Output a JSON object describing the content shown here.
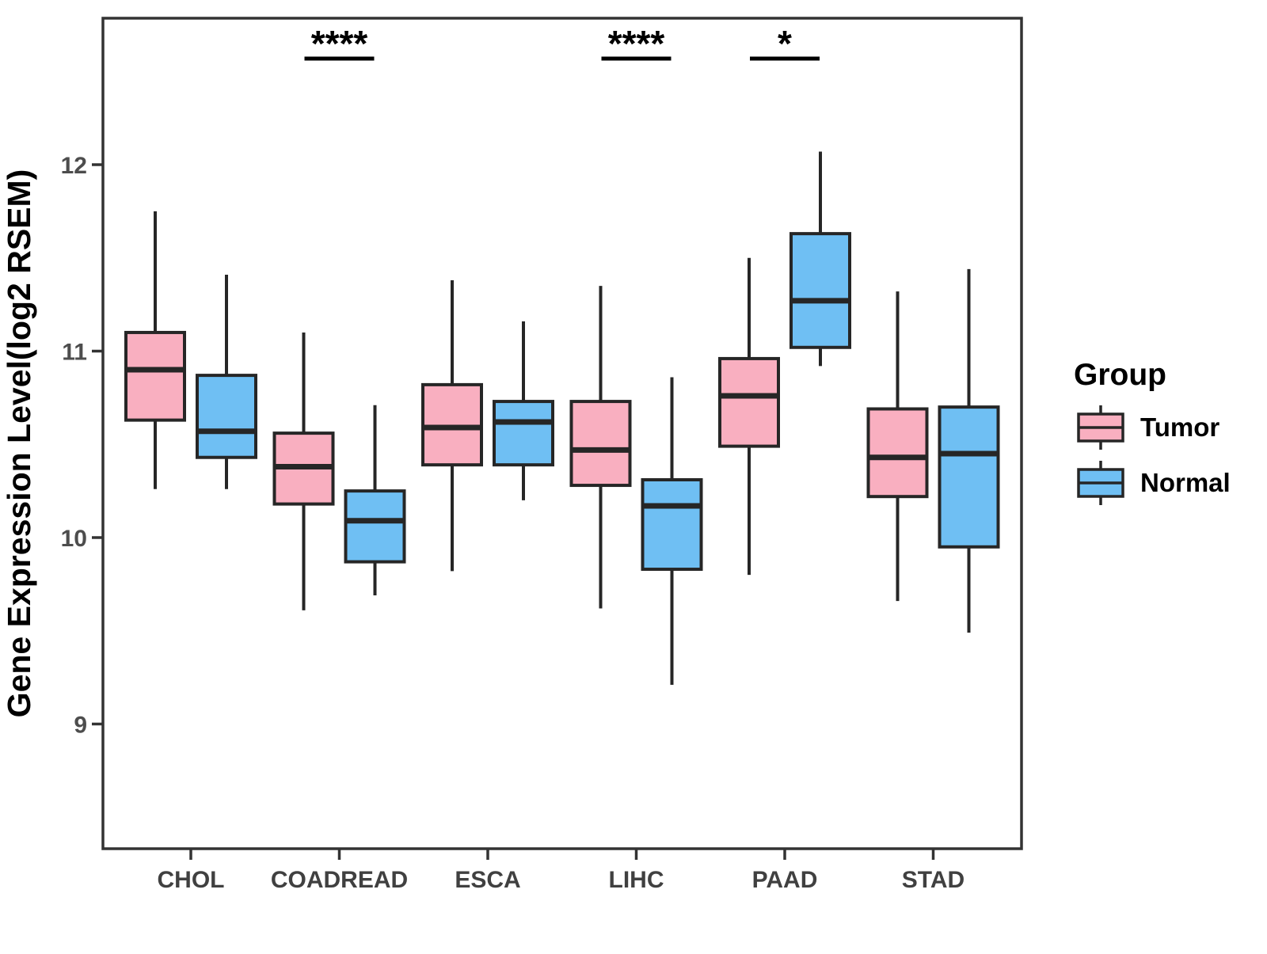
{
  "figure": {
    "background": "#ffffff"
  },
  "y_axis": {
    "title": "Gene Expression Level(log2 RSEM)",
    "ticks": [
      "9",
      "10",
      "11",
      "12"
    ],
    "tick_values": [
      9,
      10,
      11,
      12
    ]
  },
  "x_axis": {
    "categories": [
      "CHOL",
      "COADREAD",
      "ESCA",
      "LIHC",
      "PAAD",
      "STAD"
    ]
  },
  "legend": {
    "title": "Group",
    "entries": [
      {
        "label": "Tumor",
        "color": "#F9AFC0"
      },
      {
        "label": "Normal",
        "color": "#6FBFF3"
      }
    ]
  },
  "style": {
    "box_stroke": "#262626",
    "axis_color": "#333333",
    "pink": "#F9AFC0",
    "blue": "#6FBFF3"
  },
  "chart_data": {
    "type": "boxplot",
    "title": "",
    "xlabel": "",
    "ylabel": "Gene Expression Level(log2 RSEM)",
    "ylim": [
      8.33,
      12.79
    ],
    "grid": false,
    "legend_position": "right",
    "categories": [
      "CHOL",
      "COADREAD",
      "ESCA",
      "LIHC",
      "PAAD",
      "STAD"
    ],
    "series": [
      {
        "name": "Tumor",
        "color": "#F9AFC0",
        "boxes": [
          {
            "category": "CHOL",
            "min": 10.26,
            "q1": 10.63,
            "median": 10.9,
            "q3": 11.1,
            "max": 11.75
          },
          {
            "category": "COADREAD",
            "min": 9.61,
            "q1": 10.18,
            "median": 10.38,
            "q3": 10.56,
            "max": 11.1
          },
          {
            "category": "ESCA",
            "min": 9.82,
            "q1": 10.39,
            "median": 10.59,
            "q3": 10.82,
            "max": 11.38
          },
          {
            "category": "LIHC",
            "min": 9.62,
            "q1": 10.28,
            "median": 10.47,
            "q3": 10.73,
            "max": 11.35
          },
          {
            "category": "PAAD",
            "min": 9.8,
            "q1": 10.49,
            "median": 10.76,
            "q3": 10.96,
            "max": 11.5
          },
          {
            "category": "STAD",
            "min": 9.66,
            "q1": 10.22,
            "median": 10.43,
            "q3": 10.69,
            "max": 11.32
          }
        ]
      },
      {
        "name": "Normal",
        "color": "#6FBFF3",
        "boxes": [
          {
            "category": "CHOL",
            "min": 10.26,
            "q1": 10.43,
            "median": 10.57,
            "q3": 10.87,
            "max": 11.41
          },
          {
            "category": "COADREAD",
            "min": 9.69,
            "q1": 9.87,
            "median": 10.09,
            "q3": 10.25,
            "max": 10.71
          },
          {
            "category": "ESCA",
            "min": 10.2,
            "q1": 10.39,
            "median": 10.62,
            "q3": 10.73,
            "max": 11.16
          },
          {
            "category": "LIHC",
            "min": 9.21,
            "q1": 9.83,
            "median": 10.17,
            "q3": 10.31,
            "max": 10.86
          },
          {
            "category": "PAAD",
            "min": 10.92,
            "q1": 11.02,
            "median": 11.27,
            "q3": 11.63,
            "max": 12.07
          },
          {
            "category": "STAD",
            "min": 9.49,
            "q1": 9.95,
            "median": 10.45,
            "q3": 10.7,
            "max": 11.44
          }
        ]
      }
    ],
    "significance": [
      {
        "category": "COADREAD",
        "label": "****"
      },
      {
        "category": "LIHC",
        "label": "****"
      },
      {
        "category": "PAAD",
        "label": "*"
      }
    ]
  }
}
